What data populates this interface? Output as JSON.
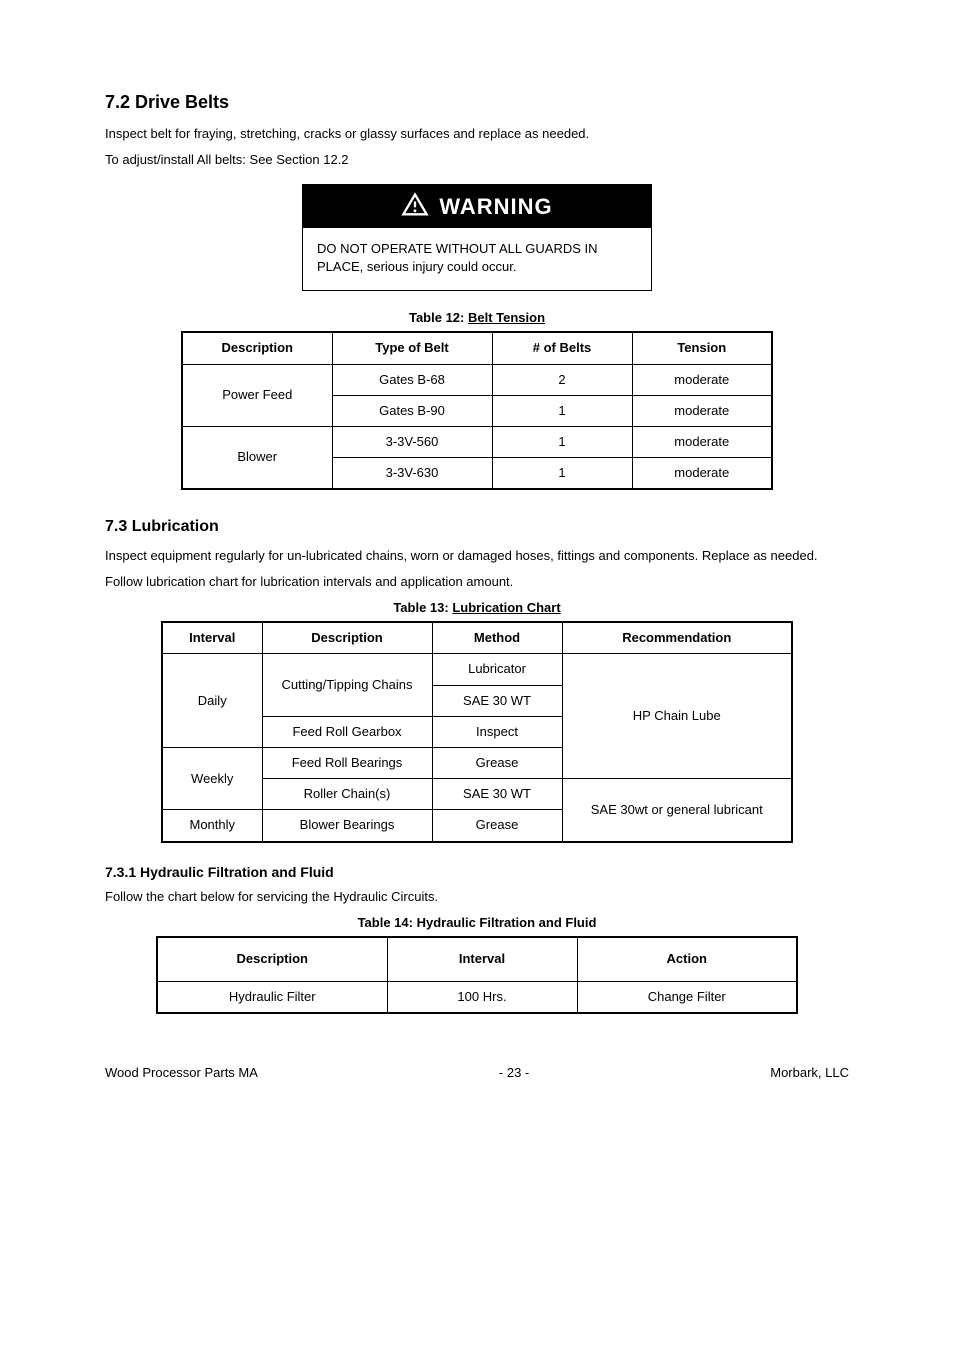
{
  "section": {
    "title": "7.2 Drive Belts",
    "para1": "Inspect belt for fraying, stretching, cracks or glassy surfaces and replace as needed.",
    "para2": "To adjust/install All belts: See Section 12.2"
  },
  "warning": {
    "label": "WARNING",
    "body": "DO NOT OPERATE WITHOUT ALL GUARDS IN PLACE, serious injury could occur."
  },
  "table12": {
    "title_prefix": "Table 12: ",
    "title_underline": "Belt Tension",
    "headers": [
      "Description",
      "Type of Belt",
      "# of Belts",
      "Tension"
    ],
    "rows": [
      {
        "desc": "Power Feed",
        "type": "Gates B-68",
        "belts": "2",
        "tension": "moderate"
      },
      {
        "continuation": true,
        "type": "Gates B-90",
        "belts": "1",
        "tension": "moderate"
      },
      {
        "desc": "Blower",
        "type": "3-3V-560",
        "belts": "1",
        "tension": "moderate"
      },
      {
        "continuation": true,
        "type": "3-3V-630",
        "belts": "1",
        "tension": "moderate"
      }
    ],
    "col_widths": [
      "150",
      "160",
      "140",
      "140"
    ]
  },
  "sub_lub": {
    "title": "7.3 Lubrication",
    "para1": "Inspect equipment regularly for un-lubricated chains, worn or damaged hoses, fittings and components. Replace as needed.",
    "para2": "Follow lubrication chart for lubrication intervals and application amount."
  },
  "table13": {
    "title_prefix": "Table 13: ",
    "title_underline": "Lubrication Chart",
    "headers": [
      "Interval",
      "Description",
      "Method",
      "Recommendation"
    ],
    "rows": [
      {
        "interval": "Daily",
        "desc": "Cutting/Tipping Chains",
        "method": "Lubricator",
        "rec": "HP Chain Lube"
      },
      {
        "continuation": true,
        "desc_cont": true,
        "method": "SAE 30 WT",
        "rec_cont": true
      },
      {
        "continuation": true,
        "desc": "Feed Roll Gearbox",
        "method": "Inspect",
        "rec_cont": true
      },
      {
        "interval": "Weekly",
        "desc": "Feed Roll Bearings",
        "method": "Grease",
        "rec_cont": true
      },
      {
        "continuation": true,
        "desc": "Roller Chain(s)",
        "method": "SAE 30 WT",
        "rec": "SAE 30wt or general lubricant"
      },
      {
        "interval": "Monthly",
        "desc": "Blower Bearings",
        "method": "Grease",
        "rec_cont": true
      }
    ],
    "col_widths": [
      "100",
      "170",
      "130",
      "230"
    ]
  },
  "subsub": {
    "title": "7.3.1 Hydraulic Filtration and Fluid",
    "para": "Follow the chart below for servicing the Hydraulic Circuits."
  },
  "table14": {
    "title_prefix": "Table 14: ",
    "title_plain": "Hydraulic Filtration and Fluid",
    "headers": [
      "Description",
      "Interval",
      "Action"
    ],
    "rows": [
      {
        "desc": "Hydraulic Filter",
        "interval": "100 Hrs.",
        "action": "Change Filter"
      }
    ],
    "col_widths": [
      "230",
      "190",
      "220"
    ]
  },
  "footer": {
    "left": "Wood Processor Parts MA",
    "center": "- 23 -",
    "right": "Morbark, LLC"
  }
}
